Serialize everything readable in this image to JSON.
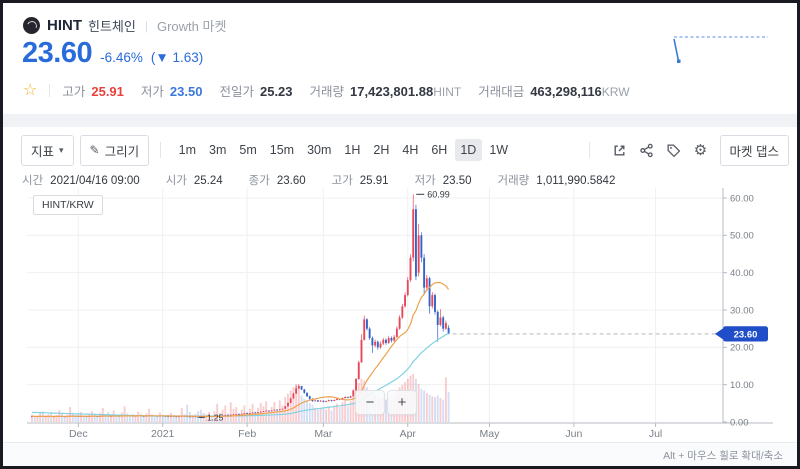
{
  "header": {
    "coin_name": "HINT",
    "coin_korean": "힌트체인",
    "market_label": "Growth 마켓",
    "price": "23.60",
    "change_percent": "-6.46%",
    "change_value": "(▼ 1.63)",
    "stats": [
      {
        "label": "고가",
        "value": "25.91",
        "color": "red"
      },
      {
        "label": "저가",
        "value": "23.50",
        "color": "blue"
      },
      {
        "label": "전일가",
        "value": "25.23",
        "color": "dark"
      },
      {
        "label": "거래량",
        "value": "17,423,801.88",
        "unit": "HINT",
        "color": "dark"
      },
      {
        "label": "거래대금",
        "value": "463,298,116",
        "unit": "KRW",
        "color": "dark"
      }
    ]
  },
  "icons": {
    "caret": "▾",
    "pencil": "✎",
    "gear": "⚙",
    "star": "☆",
    "minus": "−",
    "plus": "+"
  },
  "toolbar": {
    "indicator_label": "지표",
    "draw_label": "그리기",
    "timeframes": [
      "1m",
      "3m",
      "5m",
      "15m",
      "30m",
      "1H",
      "2H",
      "4H",
      "6H",
      "1D",
      "1W"
    ],
    "active_timeframe": "1D",
    "market_depth_label": "마켓 댑스"
  },
  "ohlc_bar": {
    "items": [
      {
        "label": "시간",
        "value": "2021/04/16 09:00"
      },
      {
        "label": "시가",
        "value": "25.24"
      },
      {
        "label": "종가",
        "value": "23.60"
      },
      {
        "label": "고가",
        "value": "25.91"
      },
      {
        "label": "저가",
        "value": "23.50"
      },
      {
        "label": "거래량",
        "value": "1,011,990.5842"
      }
    ]
  },
  "chart": {
    "pair_label": "HINT/KRW",
    "high_marker": "60.99",
    "low_marker": "1.25",
    "current_price": "23.60",
    "y_ticks": [
      "0.00",
      "10.00",
      "20.00",
      "30.00",
      "40.00",
      "50.00",
      "60.00"
    ],
    "x_labels": [
      "Dec",
      "2021",
      "Feb",
      "Mar",
      "Apr",
      "May",
      "Jun",
      "Jul"
    ],
    "hint_text": "Alt + 마우스 휠로 확대/축소",
    "colors": {
      "up": "#e6485a",
      "down": "#3263c8",
      "ma_fast": "#eda24f",
      "ma_slow": "#82d2e2",
      "tag": "#1f4ec8",
      "grid": "#eef0f3",
      "axis": "#b7bbc2",
      "label": "#7a8089"
    }
  },
  "chart_data": {
    "type": "candlestick",
    "pair": "HINT/KRW",
    "interval": "1D",
    "y_range": [
      0,
      60
    ],
    "x_label_day_offsets": [
      17,
      48,
      79,
      107,
      138,
      168,
      199,
      229
    ],
    "high_marker_index": 140,
    "low_marker_index": 62,
    "ma_fast_window": 15,
    "ma_slow_window": 45,
    "ma_slow_seed": 2.6,
    "candles": [
      [
        1.5,
        1.6,
        1.45,
        1.55,
        90
      ],
      [
        1.55,
        1.59,
        1.43,
        1.48,
        70
      ],
      [
        1.48,
        1.57,
        1.44,
        1.52,
        60
      ],
      [
        1.52,
        1.65,
        1.48,
        1.6,
        110
      ],
      [
        1.6,
        1.63,
        1.4,
        1.45,
        130
      ],
      [
        1.45,
        1.56,
        1.41,
        1.5,
        80
      ],
      [
        1.5,
        1.63,
        1.46,
        1.58,
        95
      ],
      [
        1.58,
        1.61,
        1.38,
        1.43,
        120
      ],
      [
        1.43,
        1.52,
        1.39,
        1.47,
        65
      ],
      [
        1.47,
        1.6,
        1.43,
        1.55,
        85
      ],
      [
        1.55,
        1.68,
        1.51,
        1.62,
        140
      ],
      [
        1.62,
        1.65,
        1.45,
        1.5,
        100
      ],
      [
        1.5,
        1.54,
        1.39,
        1.44,
        75
      ],
      [
        1.44,
        1.61,
        1.4,
        1.56,
        90
      ],
      [
        1.56,
        1.76,
        1.52,
        1.7,
        180
      ],
      [
        1.7,
        1.73,
        1.58,
        1.63,
        110
      ],
      [
        1.63,
        1.67,
        1.5,
        1.55,
        85
      ],
      [
        1.55,
        1.59,
        1.43,
        1.48,
        95
      ],
      [
        1.48,
        1.65,
        1.44,
        1.6,
        120
      ],
      [
        1.6,
        1.64,
        1.47,
        1.52,
        80
      ],
      [
        1.52,
        1.56,
        1.4,
        1.45,
        70
      ],
      [
        1.45,
        1.63,
        1.41,
        1.58,
        100
      ],
      [
        1.58,
        1.72,
        1.54,
        1.66,
        130
      ],
      [
        1.66,
        1.7,
        1.49,
        1.54,
        90
      ],
      [
        1.54,
        1.58,
        1.43,
        1.48,
        60
      ],
      [
        1.48,
        1.67,
        1.44,
        1.62,
        110
      ],
      [
        1.62,
        1.81,
        1.58,
        1.75,
        170
      ],
      [
        1.75,
        1.79,
        1.63,
        1.68,
        95
      ],
      [
        1.68,
        1.72,
        1.5,
        1.55,
        120
      ],
      [
        1.55,
        1.66,
        1.51,
        1.6,
        75
      ],
      [
        1.6,
        1.78,
        1.56,
        1.72,
        140
      ],
      [
        1.72,
        1.76,
        1.6,
        1.65,
        85
      ],
      [
        1.65,
        1.69,
        1.53,
        1.58,
        70
      ],
      [
        1.58,
        1.76,
        1.54,
        1.7,
        115
      ],
      [
        1.7,
        1.88,
        1.66,
        1.82,
        190
      ],
      [
        1.82,
        1.86,
        1.69,
        1.74,
        105
      ],
      [
        1.74,
        1.78,
        1.61,
        1.66,
        80
      ],
      [
        1.66,
        1.7,
        1.53,
        1.58,
        95
      ],
      [
        1.58,
        1.7,
        1.54,
        1.64,
        85
      ],
      [
        1.64,
        1.78,
        1.6,
        1.72,
        125
      ],
      [
        1.72,
        1.76,
        1.55,
        1.6,
        100
      ],
      [
        1.6,
        1.64,
        1.49,
        1.54,
        70
      ],
      [
        1.54,
        1.71,
        1.5,
        1.65,
        105
      ],
      [
        1.65,
        1.83,
        1.61,
        1.77,
        160
      ],
      [
        1.77,
        1.81,
        1.64,
        1.69,
        90
      ],
      [
        1.69,
        1.73,
        1.56,
        1.61,
        75
      ],
      [
        1.61,
        1.65,
        1.5,
        1.55,
        60
      ],
      [
        1.55,
        1.73,
        1.51,
        1.67,
        115
      ],
      [
        1.67,
        1.71,
        1.55,
        1.6,
        85
      ],
      [
        1.6,
        1.64,
        1.47,
        1.52,
        70
      ],
      [
        1.52,
        1.56,
        1.41,
        1.46,
        90
      ],
      [
        1.46,
        1.64,
        1.42,
        1.58,
        110
      ],
      [
        1.58,
        1.62,
        1.45,
        1.5,
        75
      ],
      [
        1.5,
        1.54,
        1.39,
        1.44,
        65
      ],
      [
        1.44,
        1.58,
        1.4,
        1.52,
        80
      ],
      [
        1.52,
        1.69,
        1.48,
        1.63,
        170
      ],
      [
        1.63,
        1.67,
        1.5,
        1.55,
        95
      ],
      [
        1.55,
        1.59,
        1.42,
        1.47,
        210
      ],
      [
        1.47,
        1.51,
        1.35,
        1.4,
        120
      ],
      [
        1.4,
        1.56,
        1.36,
        1.5,
        85
      ],
      [
        1.5,
        1.54,
        1.37,
        1.42,
        100
      ],
      [
        1.42,
        1.46,
        1.3,
        1.35,
        130
      ],
      [
        1.35,
        1.39,
        1.25,
        1.3,
        150
      ],
      [
        1.3,
        1.48,
        1.27,
        1.42,
        110
      ],
      [
        1.42,
        1.58,
        1.38,
        1.52,
        95
      ],
      [
        1.52,
        1.66,
        1.48,
        1.6,
        120
      ],
      [
        1.6,
        1.64,
        1.48,
        1.53,
        80
      ],
      [
        1.53,
        1.71,
        1.49,
        1.65,
        130
      ],
      [
        1.65,
        1.82,
        1.61,
        1.76,
        220
      ],
      [
        1.76,
        1.8,
        1.63,
        1.68,
        110
      ],
      [
        1.68,
        1.86,
        1.64,
        1.8,
        150
      ],
      [
        1.8,
        1.96,
        1.76,
        1.9,
        200
      ],
      [
        1.9,
        1.94,
        1.78,
        1.83,
        105
      ],
      [
        1.83,
        2.01,
        1.79,
        1.95,
        240
      ],
      [
        1.95,
        2.11,
        1.91,
        2.05,
        160
      ],
      [
        2.05,
        2.21,
        2.01,
        2.15,
        180
      ],
      [
        2.15,
        2.19,
        2.0,
        2.05,
        110
      ],
      [
        2.05,
        2.26,
        2.01,
        2.2,
        150
      ],
      [
        2.2,
        2.41,
        2.16,
        2.35,
        200
      ],
      [
        2.35,
        2.39,
        2.2,
        2.25,
        120
      ],
      [
        2.25,
        2.46,
        2.21,
        2.4,
        160
      ],
      [
        2.4,
        2.61,
        2.36,
        2.55,
        220
      ],
      [
        2.55,
        2.59,
        2.4,
        2.45,
        130
      ],
      [
        2.45,
        2.66,
        2.41,
        2.6,
        170
      ],
      [
        2.6,
        2.81,
        2.56,
        2.75,
        230
      ],
      [
        2.75,
        2.96,
        2.71,
        2.9,
        190
      ],
      [
        2.9,
        3.11,
        2.86,
        3.05,
        250
      ],
      [
        3.05,
        3.09,
        2.9,
        2.95,
        140
      ],
      [
        2.95,
        3.16,
        2.91,
        3.1,
        180
      ],
      [
        3.1,
        3.36,
        3.06,
        3.3,
        240
      ],
      [
        3.3,
        3.34,
        3.15,
        3.2,
        150
      ],
      [
        3.2,
        3.46,
        3.16,
        3.4,
        260
      ],
      [
        3.4,
        3.61,
        3.36,
        3.55,
        200
      ],
      [
        3.55,
        4.3,
        3.5,
        4.2,
        300
      ],
      [
        4.2,
        5.25,
        4.15,
        5.1,
        340
      ],
      [
        5.1,
        6.5,
        5.05,
        6.3,
        380
      ],
      [
        6.3,
        7.85,
        6.25,
        7.6,
        420
      ],
      [
        7.6,
        9.8,
        7.55,
        9.0,
        460
      ],
      [
        9.0,
        10.2,
        8.8,
        9.6,
        440
      ],
      [
        9.6,
        9.7,
        8.5,
        8.7,
        320
      ],
      [
        8.7,
        8.85,
        7.6,
        7.8,
        280
      ],
      [
        7.8,
        7.95,
        6.7,
        6.9,
        260
      ],
      [
        6.9,
        7.05,
        6.0,
        6.2,
        230
      ],
      [
        6.2,
        6.35,
        5.4,
        5.6,
        210
      ],
      [
        5.6,
        5.95,
        5.45,
        5.8,
        170
      ],
      [
        5.8,
        5.9,
        5.35,
        5.5,
        150
      ],
      [
        5.5,
        5.85,
        5.4,
        5.7,
        160
      ],
      [
        5.7,
        5.8,
        5.25,
        5.4,
        180
      ],
      [
        5.4,
        5.75,
        5.3,
        5.6,
        150
      ],
      [
        5.6,
        6.0,
        5.5,
        5.85,
        190
      ],
      [
        5.85,
        5.95,
        5.5,
        5.65,
        140
      ],
      [
        5.65,
        6.05,
        5.55,
        5.9,
        200
      ],
      [
        5.9,
        6.35,
        5.8,
        6.2,
        220
      ],
      [
        6.2,
        6.3,
        5.85,
        6.0,
        180
      ],
      [
        6.0,
        6.55,
        5.9,
        6.4,
        240
      ],
      [
        6.4,
        6.85,
        6.3,
        6.7,
        260
      ],
      [
        6.7,
        6.8,
        6.35,
        6.5,
        190
      ],
      [
        6.5,
        7.05,
        6.4,
        6.9,
        250
      ],
      [
        6.9,
        8.7,
        6.8,
        8.5,
        380
      ],
      [
        8.5,
        11.8,
        8.4,
        11.5,
        420
      ],
      [
        11.5,
        16.4,
        11.3,
        16.0,
        470
      ],
      [
        16.0,
        23.5,
        15.8,
        22.0,
        520
      ],
      [
        22.0,
        28.5,
        21.8,
        27.5,
        500
      ],
      [
        27.5,
        27.8,
        24.5,
        25.0,
        420
      ],
      [
        25.0,
        25.4,
        22.0,
        22.5,
        380
      ],
      [
        22.5,
        22.9,
        18.5,
        20.5,
        350
      ],
      [
        20.5,
        22.1,
        20.0,
        21.5,
        330
      ],
      [
        21.5,
        21.8,
        19.4,
        20.0,
        310
      ],
      [
        20.0,
        21.6,
        19.6,
        21.0,
        280
      ],
      [
        21.0,
        22.5,
        20.6,
        22.0,
        300
      ],
      [
        22.0,
        22.4,
        20.7,
        21.2,
        270
      ],
      [
        21.2,
        23.0,
        20.9,
        22.5,
        290
      ],
      [
        22.5,
        22.9,
        21.3,
        21.8,
        260
      ],
      [
        21.8,
        23.3,
        21.5,
        22.8,
        300
      ],
      [
        22.8,
        25.6,
        22.5,
        25.0,
        380
      ],
      [
        25.0,
        28.6,
        24.7,
        28.0,
        420
      ],
      [
        28.0,
        31.6,
        27.6,
        31.0,
        450
      ],
      [
        31.0,
        34.7,
        30.6,
        34.0,
        480
      ],
      [
        34.0,
        38.8,
        33.6,
        38.0,
        520
      ],
      [
        38.0,
        44.9,
        37.5,
        44.0,
        560
      ],
      [
        44.0,
        60.99,
        43.0,
        57.0,
        580
      ],
      [
        57.0,
        58.2,
        38.0,
        39.0,
        520
      ],
      [
        40.0,
        53.0,
        39.0,
        50.0,
        460
      ],
      [
        50.0,
        50.8,
        42.8,
        44.0,
        400
      ],
      [
        44.0,
        45.0,
        34.0,
        36.0,
        380
      ],
      [
        36.0,
        39.4,
        35.0,
        38.5,
        350
      ],
      [
        38.5,
        38.9,
        29.0,
        31.0,
        330
      ],
      [
        31.0,
        34.8,
        30.4,
        34.0,
        310
      ],
      [
        34.0,
        34.4,
        28.8,
        29.5,
        300
      ],
      [
        29.5,
        29.9,
        21.5,
        26.0,
        320
      ],
      [
        26.0,
        30.2,
        25.6,
        28.0,
        290
      ],
      [
        28.0,
        28.4,
        24.2,
        25.0,
        270
      ],
      [
        25.0,
        27.2,
        24.6,
        26.5,
        540
      ],
      [
        25.24,
        25.91,
        23.5,
        23.6,
        360
      ]
    ]
  }
}
